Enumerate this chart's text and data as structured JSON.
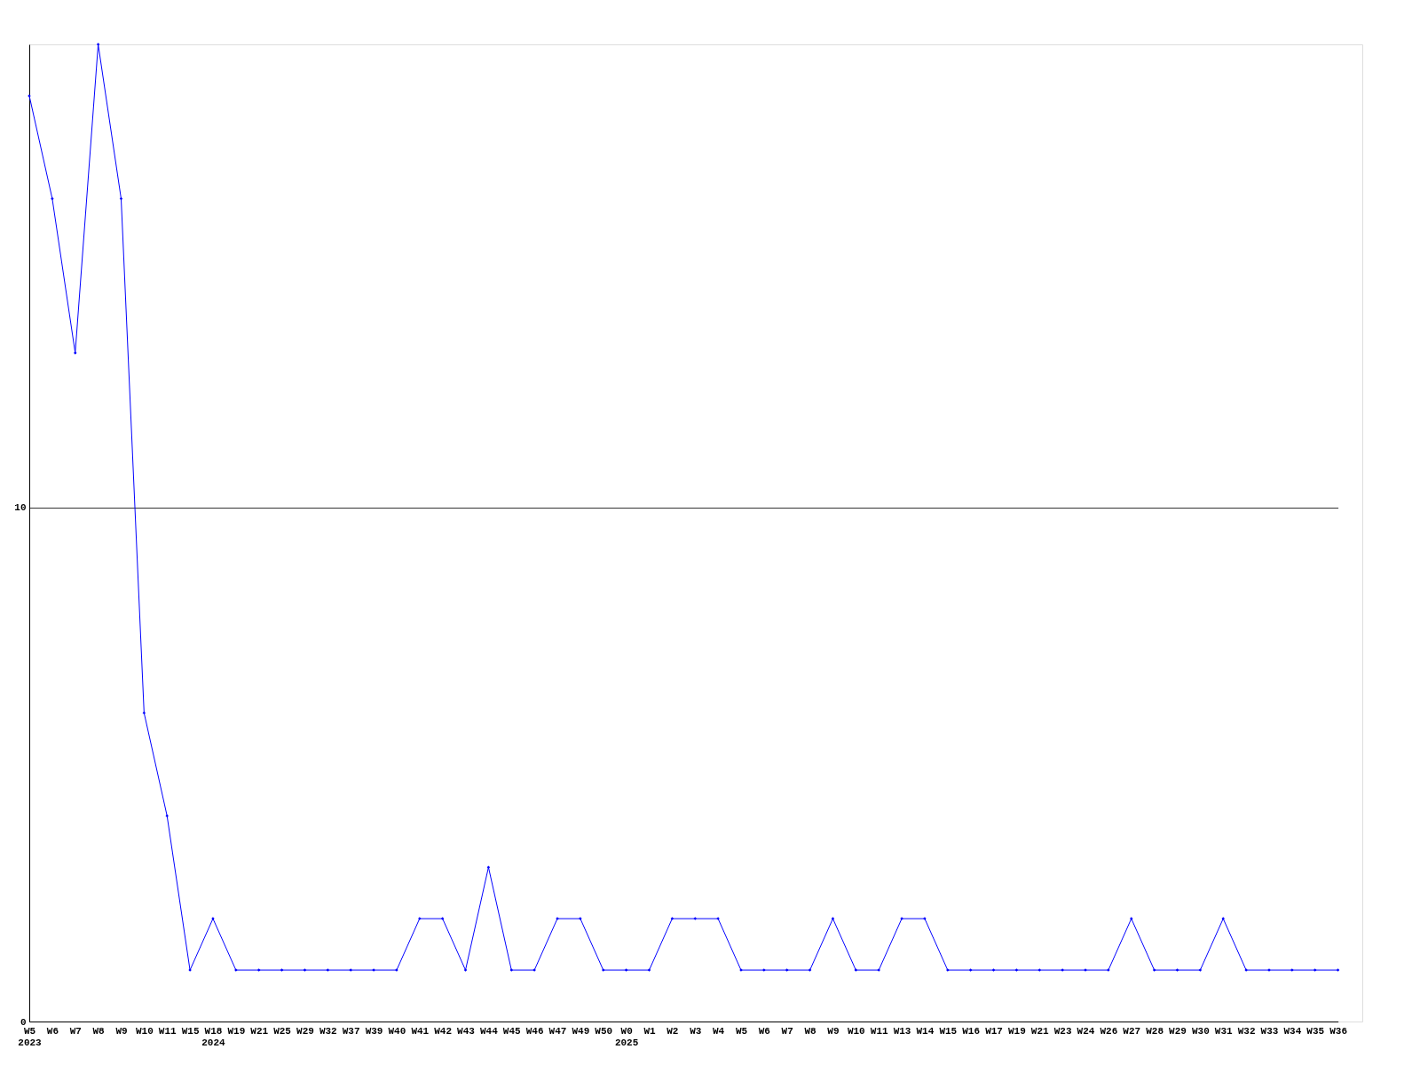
{
  "chart_data": {
    "type": "line",
    "categories": [
      "W5\n2023",
      "W6",
      "W7",
      "W8",
      "W9",
      "W10",
      "W11",
      "W15",
      "W18\n2024",
      "W19",
      "W21",
      "W25",
      "W29",
      "W32",
      "W37",
      "W39",
      "W40",
      "W41",
      "W42",
      "W43",
      "W44",
      "W45",
      "W46",
      "W47",
      "W49",
      "W50",
      "W0\n2025",
      "W1",
      "W2",
      "W3",
      "W4",
      "W5",
      "W6",
      "W7",
      "W8",
      "W9",
      "W10",
      "W11",
      "W13",
      "W14",
      "W15",
      "W16",
      "W17",
      "W19",
      "W21",
      "W23",
      "W24",
      "W26",
      "W27",
      "W28",
      "W29",
      "W30",
      "W31",
      "W32",
      "W33",
      "W34",
      "W35",
      "W36"
    ],
    "series": [
      {
        "color": "#0000ff",
        "values": [
          18,
          16,
          13,
          19,
          16,
          6,
          4,
          1,
          2,
          1,
          1,
          1,
          1,
          1,
          1,
          1,
          1,
          2,
          2,
          1,
          3,
          1,
          1,
          2,
          2,
          1,
          1,
          1,
          2,
          2,
          2,
          1,
          1,
          1,
          1,
          2,
          1,
          1,
          2,
          2,
          1,
          1,
          1,
          1,
          1,
          1,
          1,
          1,
          2,
          1,
          1,
          1,
          2,
          1,
          1,
          1,
          1,
          1
        ]
      }
    ],
    "ylim": [
      0,
      19
    ],
    "yticks": [
      0,
      10
    ],
    "grid": "y",
    "marker": "diamond"
  }
}
